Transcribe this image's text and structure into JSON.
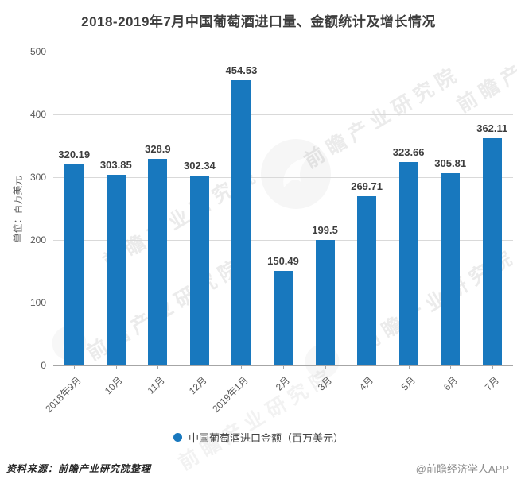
{
  "title": "2018-2019年7月中国葡萄酒进口量、金额统计及增长情况",
  "chart_data": {
    "type": "bar",
    "title": "2018-2019年7月中国葡萄酒进口量、金额统计及增长情况",
    "categories": [
      "2018年9月",
      "10月",
      "11月",
      "12月",
      "2019年1月",
      "2月",
      "3月",
      "4月",
      "5月",
      "6月",
      "7月"
    ],
    "series": [
      {
        "name": "中国葡萄酒进口金额（百万美元）",
        "values": [
          320.19,
          303.85,
          328.9,
          302.34,
          454.53,
          150.49,
          199.5,
          269.71,
          323.66,
          305.81,
          362.11
        ]
      }
    ],
    "value_labels": [
      "320.19",
      "303.85",
      "328.9",
      "302.34",
      "454.53",
      "150.49",
      "199.5",
      "269.71",
      "323.66",
      "305.81",
      "362.11"
    ],
    "xlabel": "",
    "ylabel": "单位：百万美元",
    "ylim": [
      0,
      500
    ],
    "yticks": [
      0,
      100,
      200,
      300,
      400,
      500
    ],
    "grid": true,
    "legend_position": "bottom",
    "bar_color": "#1878be",
    "grid_color": "#d9d9d9",
    "axis_color": "#a6a6a6"
  },
  "legend": {
    "label": "中国葡萄酒进口金额（百万美元）",
    "marker_color": "#1878be"
  },
  "footer": {
    "source": "资料来源：前瞻产业研究院整理",
    "credit": "@前瞻经济学人APP"
  },
  "watermark": {
    "text": "前瞻产业研究院"
  }
}
